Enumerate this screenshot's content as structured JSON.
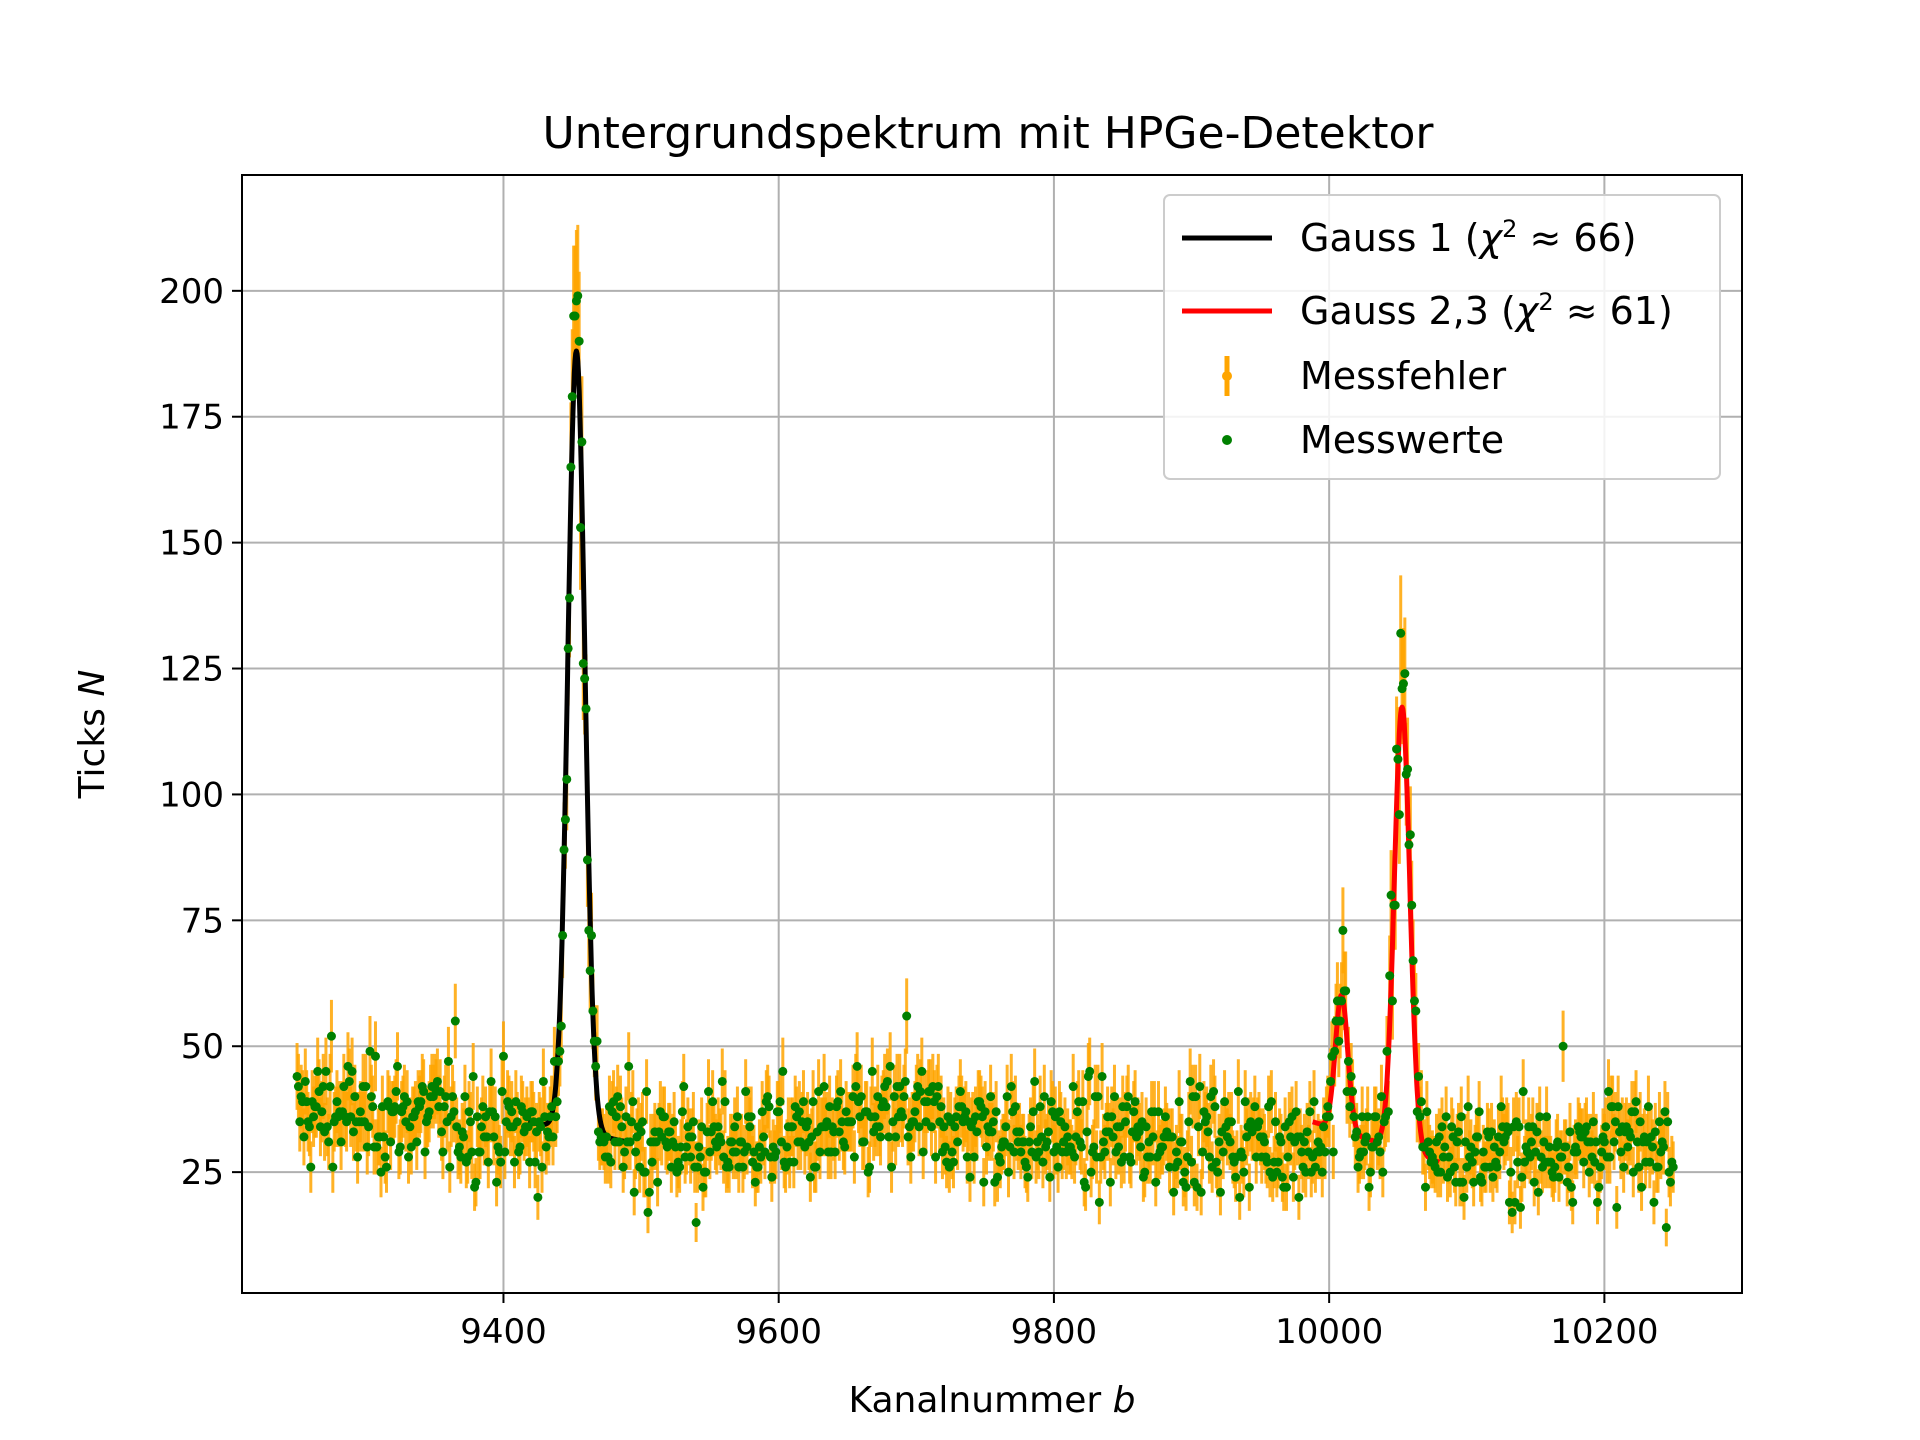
{
  "chart_data": {
    "type": "scatter",
    "title": "Untergrundspektrum mit HPGe-Detektor",
    "xlabel": "Kanalnummer",
    "xlabel_var": "b",
    "ylabel": "Ticks",
    "ylabel_var": "N",
    "xlim": [
      9210,
      10300
    ],
    "ylim": [
      1,
      223
    ],
    "xticks": [
      9400,
      9600,
      9800,
      10000,
      10200
    ],
    "yticks": [
      25,
      50,
      75,
      100,
      125,
      150,
      175,
      200
    ],
    "grid": true,
    "legend_position": "top-right",
    "colors": {
      "gauss1": "#000000",
      "gauss23": "#ff0000",
      "errorbar": "#ffa500",
      "points": "#008000",
      "grid": "#b0b0b0"
    },
    "legend": [
      {
        "label": "Gauss 1 (χ² ≈ 66)",
        "text": "Gauss 1 (",
        "chi": "χ",
        "sup": "2",
        "rest": " ≈ 66)",
        "kind": "line",
        "color": "#000000"
      },
      {
        "label": "Gauss 2,3 (χ² ≈ 61)",
        "text": "Gauss 2,3 (",
        "chi": "χ",
        "sup": "2",
        "rest": " ≈ 61)",
        "kind": "line",
        "color": "#ff0000"
      },
      {
        "label": "Messfehler",
        "kind": "errorbar",
        "color": "#ffa500"
      },
      {
        "label": "Messwerte",
        "kind": "marker",
        "color": "#008000"
      }
    ],
    "data_series": {
      "name": "Messwerte",
      "x_range": [
        9250,
        10250
      ],
      "error": "sqrt(N)",
      "background_profile": [
        [
          9250,
          37
        ],
        [
          9300,
          36
        ],
        [
          9350,
          36
        ],
        [
          9400,
          34
        ],
        [
          9440,
          32
        ],
        [
          9500,
          32
        ],
        [
          9550,
          31
        ],
        [
          9600,
          32
        ],
        [
          9650,
          33
        ],
        [
          9690,
          36
        ],
        [
          9750,
          33
        ],
        [
          9800,
          32
        ],
        [
          9850,
          32
        ],
        [
          9900,
          32
        ],
        [
          9950,
          31
        ],
        [
          10000,
          31
        ],
        [
          10100,
          29
        ],
        [
          10150,
          29
        ],
        [
          10200,
          30
        ],
        [
          10250,
          30
        ]
      ],
      "spread": 5,
      "peaks": [
        {
          "center": 9453,
          "amplitude": 162,
          "sigma": 6.0
        },
        {
          "center": 10009,
          "amplitude": 28,
          "sigma": 4.5
        },
        {
          "center": 10053,
          "amplitude": 92,
          "sigma": 5.5
        }
      ],
      "highlights": [
        {
          "x": 9454,
          "y": 199
        },
        {
          "x": 9455,
          "y": 190
        },
        {
          "x": 9540,
          "y": 15
        },
        {
          "x": 9505,
          "y": 17
        },
        {
          "x": 9275,
          "y": 52
        },
        {
          "x": 9365,
          "y": 55
        },
        {
          "x": 9693,
          "y": 56
        },
        {
          "x": 10052,
          "y": 132
        },
        {
          "x": 10054,
          "y": 122
        },
        {
          "x": 10010,
          "y": 73
        },
        {
          "x": 10170,
          "y": 50
        }
      ]
    },
    "fits": [
      {
        "name": "Gauss 1",
        "color": "#000000",
        "x_range": [
          9418,
          9490
        ],
        "baseline_left": 35,
        "baseline_right": 31,
        "peaks": [
          {
            "center": 9453,
            "amplitude": 155,
            "sigma": 6.2
          }
        ]
      },
      {
        "name": "Gauss 2,3",
        "color": "#ff0000",
        "x_range": [
          9988,
          10080
        ],
        "baseline_left": 35,
        "baseline_right": 27,
        "peaks": [
          {
            "center": 10009,
            "amplitude": 27,
            "sigma": 4.5
          },
          {
            "center": 10053,
            "amplitude": 88,
            "sigma": 5.6
          }
        ]
      }
    ]
  }
}
